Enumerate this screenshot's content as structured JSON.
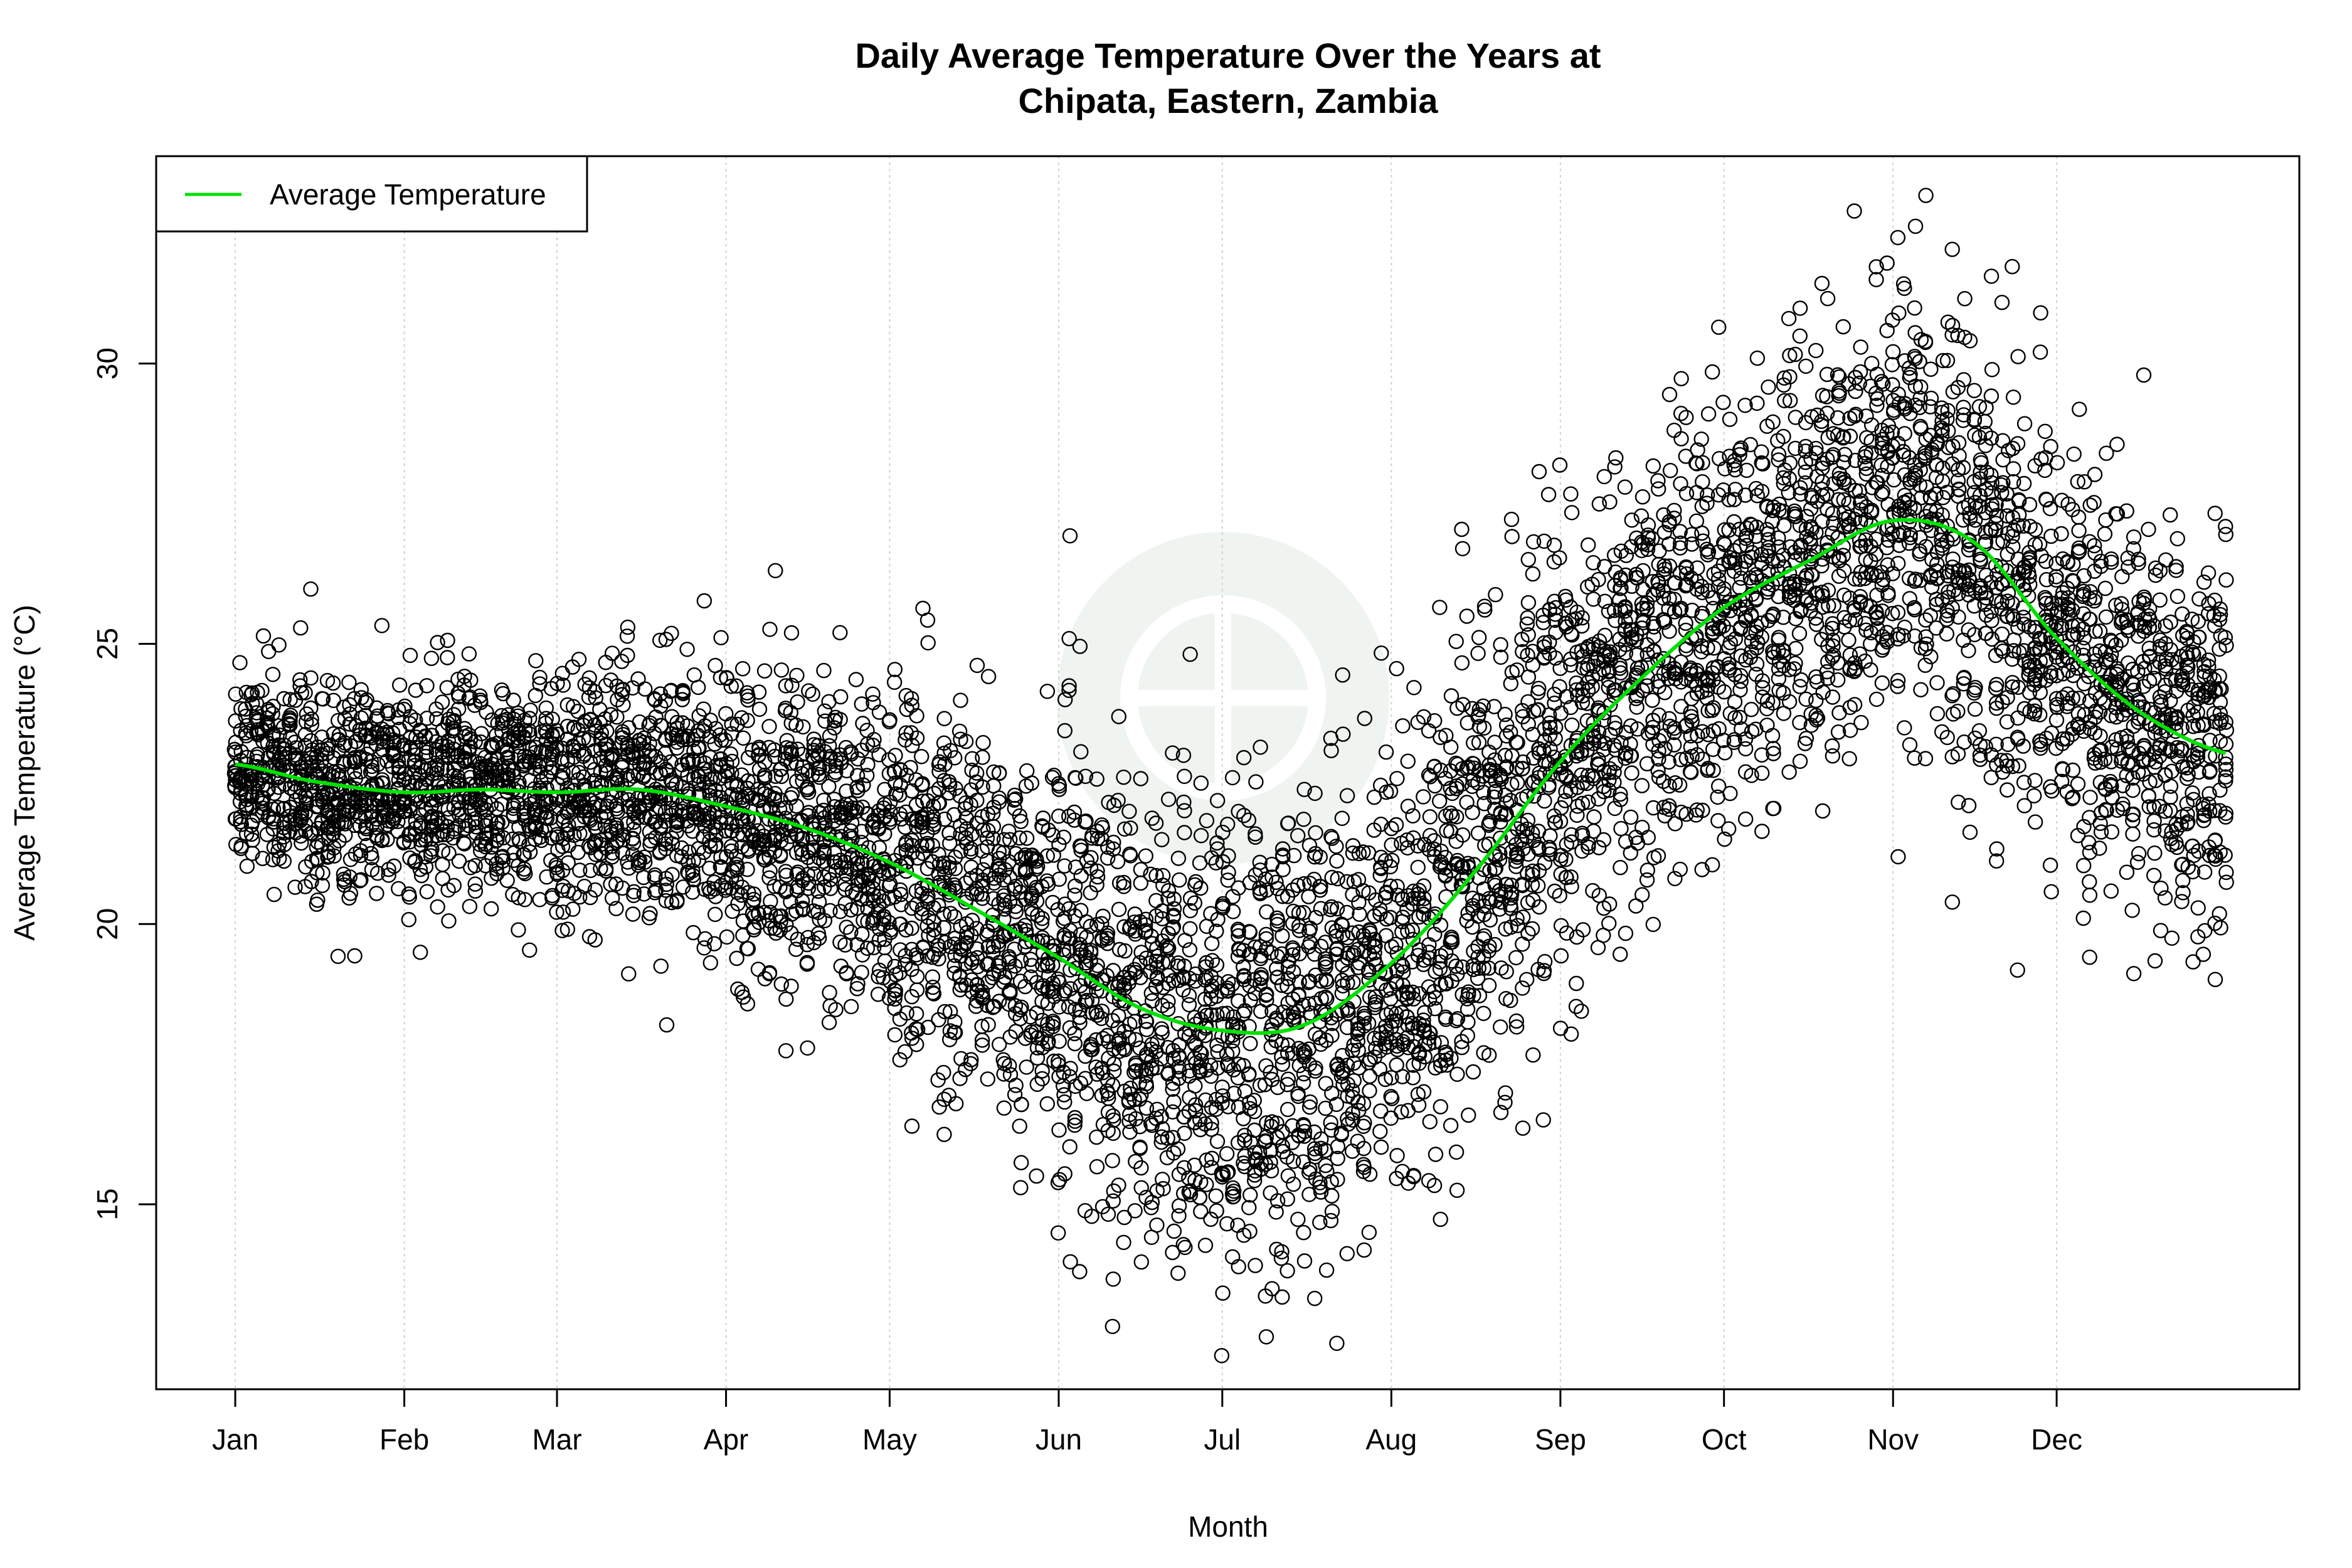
{
  "chart_data": {
    "type": "scatter",
    "title": [
      "Daily Average Temperature Over the Years at",
      "Chipata, Eastern, Zambia"
    ],
    "xlabel": "Month",
    "ylabel": "Average Temperature (°C)",
    "xlim": [
      -13.5,
      379.5
    ],
    "ylim": [
      11.7,
      33.7
    ],
    "grid": "vertical dotted at month starts",
    "x_ticks": [
      {
        "day": 1,
        "label": "Jan"
      },
      {
        "day": 32,
        "label": "Feb"
      },
      {
        "day": 60,
        "label": "Mar"
      },
      {
        "day": 91,
        "label": "Apr"
      },
      {
        "day": 121,
        "label": "May"
      },
      {
        "day": 152,
        "label": "Jun"
      },
      {
        "day": 182,
        "label": "Jul"
      },
      {
        "day": 213,
        "label": "Aug"
      },
      {
        "day": 244,
        "label": "Sep"
      },
      {
        "day": 274,
        "label": "Oct"
      },
      {
        "day": 305,
        "label": "Nov"
      },
      {
        "day": 335,
        "label": "Dec"
      }
    ],
    "y_ticks": [
      15,
      20,
      25,
      30
    ],
    "legend": {
      "position": "top-left",
      "entries": [
        {
          "label": "Average Temperature",
          "color": "#00e000"
        }
      ]
    },
    "point_color": "#000000",
    "series": [
      {
        "name": "Average Temperature",
        "kind": "smooth-line",
        "color": "#00e000",
        "points": [
          [
            1,
            22.85
          ],
          [
            15,
            22.55
          ],
          [
            32,
            22.35
          ],
          [
            46,
            22.4
          ],
          [
            60,
            22.35
          ],
          [
            75,
            22.4
          ],
          [
            91,
            22.1
          ],
          [
            106,
            21.7
          ],
          [
            121,
            21.1
          ],
          [
            136,
            20.3
          ],
          [
            152,
            19.4
          ],
          [
            167,
            18.5
          ],
          [
            182,
            18.1
          ],
          [
            197,
            18.2
          ],
          [
            213,
            19.3
          ],
          [
            228,
            20.9
          ],
          [
            244,
            22.9
          ],
          [
            259,
            24.4
          ],
          [
            274,
            25.65
          ],
          [
            290,
            26.5
          ],
          [
            305,
            27.2
          ],
          [
            320,
            26.8
          ],
          [
            335,
            25.1
          ],
          [
            350,
            23.8
          ],
          [
            366,
            23.05
          ]
        ]
      },
      {
        "name": "Daily observations",
        "kind": "scatter",
        "center": "follows Average Temperature",
        "monthly_spread_sd": [
          0.9,
          1.0,
          1.1,
          1.3,
          1.7,
          2.0,
          2.1,
          2.0,
          1.9,
          1.9,
          2.0,
          1.7
        ]
      }
    ]
  }
}
